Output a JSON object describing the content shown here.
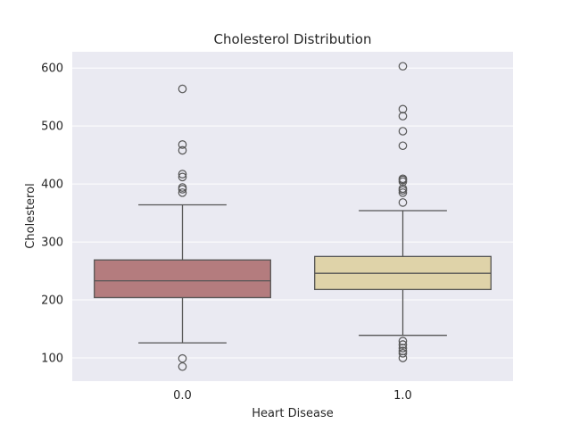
{
  "chart_data": {
    "type": "box",
    "title": "Cholesterol Distribution",
    "xlabel": "Heart Disease",
    "ylabel": "Cholesterol",
    "ylim": [
      60,
      628
    ],
    "yticks": [
      100,
      200,
      300,
      400,
      500,
      600
    ],
    "grid": true,
    "categories": [
      "0.0",
      "1.0"
    ],
    "boxes": [
      {
        "category": "0.0",
        "color": "#b47c7e",
        "whisker_low": 126,
        "q1": 204,
        "median": 233,
        "q3": 269,
        "whisker_high": 364,
        "outliers": [
          564,
          468,
          458,
          417,
          412,
          394,
          391,
          385,
          99,
          85
        ]
      },
      {
        "category": "1.0",
        "color": "#dfd3a9",
        "whisker_low": 139,
        "q1": 218,
        "median": 246,
        "q3": 275,
        "whisker_high": 354,
        "outliers": [
          603,
          529,
          517,
          491,
          466,
          409,
          407,
          404,
          392,
          389,
          385,
          368,
          129,
          123,
          117,
          112,
          108,
          100
        ]
      }
    ]
  }
}
